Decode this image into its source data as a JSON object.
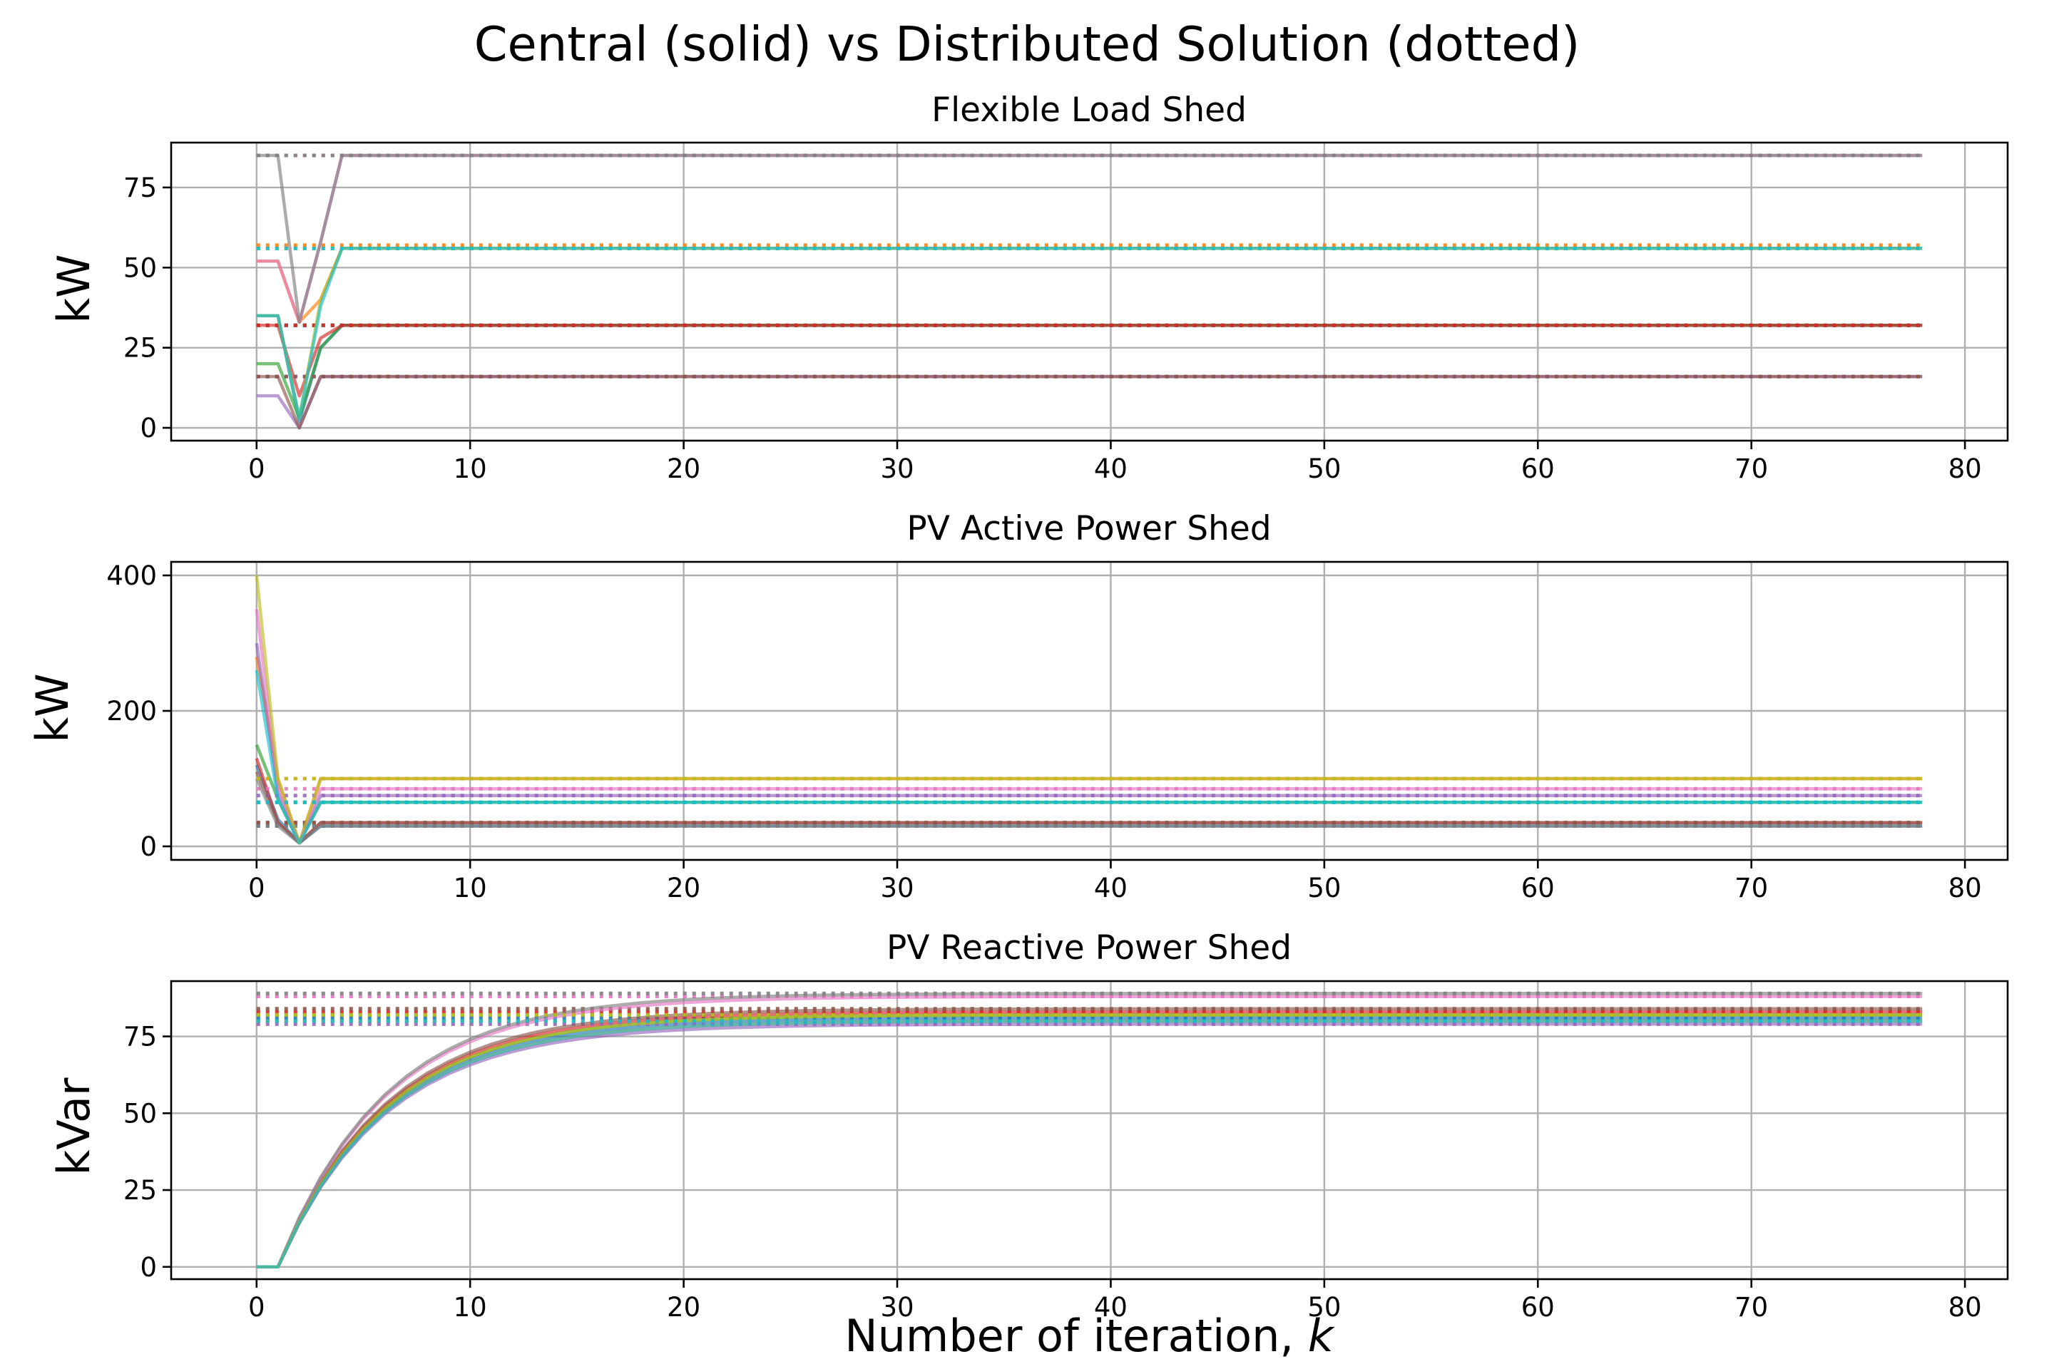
{
  "figure": {
    "suptitle": "Central (solid) vs Distributed Solution (dotted)",
    "xlabel": "Number of iteration, ",
    "xlabel_var": "k"
  },
  "chart_data": [
    {
      "type": "line",
      "title": "Flexible Load Shed",
      "ylabel": "kW",
      "xlim": [
        -4,
        82
      ],
      "ylim": [
        -4,
        89
      ],
      "xticks": [
        0,
        10,
        20,
        30,
        40,
        50,
        60,
        70,
        80
      ],
      "yticks": [
        0,
        25,
        50,
        75
      ],
      "grid": true,
      "x_last": 78,
      "series": [
        {
          "color": "#1f77b4",
          "start": [
            35,
            35,
            2,
            25,
            32
          ],
          "final": 32,
          "dotted": 32
        },
        {
          "color": "#ff7f0e",
          "start": [
            52,
            52,
            33,
            40,
            56
          ],
          "final": 56,
          "dotted": 57
        },
        {
          "color": "#2ca02c",
          "start": [
            20,
            20,
            3,
            25,
            32
          ],
          "final": 32,
          "dotted": 32
        },
        {
          "color": "#d62728",
          "start": [
            32,
            32,
            10,
            28,
            32
          ],
          "final": 32,
          "dotted": 32
        },
        {
          "color": "#9467bd",
          "start": [
            10,
            10,
            0,
            16,
            16
          ],
          "final": 16,
          "dotted": 16
        },
        {
          "color": "#8c564b",
          "start": [
            16,
            16,
            0,
            16,
            16
          ],
          "final": 16,
          "dotted": 16
        },
        {
          "color": "#e377c2",
          "start": [
            52,
            52,
            33,
            58,
            85
          ],
          "final": 85,
          "dotted": 85
        },
        {
          "color": "#7f7f7f",
          "start": [
            85,
            85,
            33,
            58,
            85
          ],
          "final": 85,
          "dotted": 85
        },
        {
          "color": "#bcbd22",
          "start": [
            35,
            35,
            3,
            40,
            56
          ],
          "final": 56,
          "dotted": 56
        },
        {
          "color": "#17becf",
          "start": [
            35,
            35,
            3,
            38,
            56
          ],
          "final": 56,
          "dotted": 56
        }
      ]
    },
    {
      "type": "line",
      "title": "PV Active Power Shed",
      "ylabel": "kW",
      "xlim": [
        -4,
        82
      ],
      "ylim": [
        -20,
        420
      ],
      "xticks": [
        0,
        10,
        20,
        30,
        40,
        50,
        60,
        70,
        80
      ],
      "yticks": [
        0,
        200,
        400
      ],
      "grid": true,
      "x_last": 78,
      "series": [
        {
          "color": "#1f77b4",
          "start": [
            120,
            40,
            5,
            30
          ],
          "final": 30,
          "dotted": 30
        },
        {
          "color": "#ff7f0e",
          "start": [
            280,
            100,
            5,
            100
          ],
          "final": 100,
          "dotted": 100
        },
        {
          "color": "#2ca02c",
          "start": [
            150,
            70,
            5,
            65
          ],
          "final": 65,
          "dotted": 65
        },
        {
          "color": "#d62728",
          "start": [
            130,
            35,
            5,
            35
          ],
          "final": 35,
          "dotted": 35
        },
        {
          "color": "#9467bd",
          "start": [
            300,
            80,
            5,
            75
          ],
          "final": 75,
          "dotted": 75
        },
        {
          "color": "#8c564b",
          "start": [
            110,
            35,
            5,
            35
          ],
          "final": 35,
          "dotted": 35
        },
        {
          "color": "#e377c2",
          "start": [
            350,
            90,
            5,
            85
          ],
          "final": 85,
          "dotted": 85
        },
        {
          "color": "#7f7f7f",
          "start": [
            100,
            30,
            5,
            30
          ],
          "final": 30,
          "dotted": 30
        },
        {
          "color": "#bcbd22",
          "start": [
            400,
            100,
            5,
            100
          ],
          "final": 100,
          "dotted": 100
        },
        {
          "color": "#17becf",
          "start": [
            260,
            70,
            5,
            65
          ],
          "final": 65,
          "dotted": 65
        }
      ]
    },
    {
      "type": "line",
      "title": "PV Reactive Power Shed",
      "ylabel": "kVar",
      "xlim": [
        -4,
        82
      ],
      "ylim": [
        -4,
        93
      ],
      "xticks": [
        0,
        10,
        20,
        30,
        40,
        50,
        60,
        70,
        80
      ],
      "yticks": [
        0,
        25,
        50,
        75
      ],
      "grid": true,
      "x_last": 78,
      "curve": "exp-approach",
      "curve_rate": 0.82,
      "series": [
        {
          "color": "#1f77b4",
          "final": 81,
          "dotted": 81
        },
        {
          "color": "#ff7f0e",
          "final": 80,
          "dotted": 80
        },
        {
          "color": "#2ca02c",
          "final": 82,
          "dotted": 82
        },
        {
          "color": "#d62728",
          "final": 83,
          "dotted": 83
        },
        {
          "color": "#9467bd",
          "final": 79,
          "dotted": 79
        },
        {
          "color": "#8c564b",
          "final": 84,
          "dotted": 84
        },
        {
          "color": "#e377c2",
          "final": 88,
          "dotted": 88
        },
        {
          "color": "#7f7f7f",
          "final": 89,
          "dotted": 89
        },
        {
          "color": "#bcbd22",
          "final": 82,
          "dotted": 82
        },
        {
          "color": "#17becf",
          "final": 80,
          "dotted": 80
        }
      ]
    }
  ]
}
